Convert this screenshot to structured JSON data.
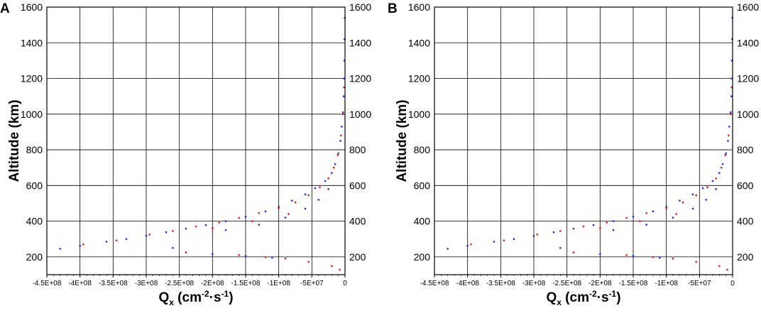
{
  "chart_data": [
    {
      "panel_label": "A",
      "type": "scatter",
      "xlabel": "Q",
      "xlabel_sub": "x",
      "xlabel_units": " (cm",
      "xlabel_exp1": "-2",
      "xlabel_mid": "·s",
      "xlabel_exp2": "-1",
      "xlabel_close": ")",
      "ylabel": "Altitude (km)",
      "xlim": [
        -450000000,
        0
      ],
      "ylim": [
        100,
        1600
      ],
      "xticks": [
        -450000000,
        -400000000,
        -350000000,
        -300000000,
        -250000000,
        -200000000,
        -150000000,
        -100000000,
        -50000000,
        0
      ],
      "xtick_labels": [
        "-4.5E+08",
        "-4E+08",
        "-3.5E+08",
        "-3E+08",
        "-2.5E+08",
        "-2E+08",
        "-1.5E+08",
        "-1E+08",
        "-5E+07",
        "0"
      ],
      "yticks": [
        200,
        400,
        600,
        800,
        1000,
        1200,
        1400,
        1600
      ],
      "ytick_labels": [
        "200",
        "400",
        "600",
        "800",
        "1000",
        "1200",
        "1400",
        "1600"
      ],
      "grid": true,
      "colors": {
        "series_a": "#2b2bd6",
        "series_b": "#d62020"
      },
      "series": [
        {
          "color": "#2b2bd6",
          "points": [
            [
              -430000000,
              245
            ],
            [
              -400000000,
              262
            ],
            [
              -360000000,
              285
            ],
            [
              -330000000,
              300
            ],
            [
              -300000000,
              318
            ],
            [
              -270000000,
              338
            ],
            [
              -240000000,
              358
            ],
            [
              -210000000,
              378
            ],
            [
              -180000000,
              400
            ],
            [
              -150000000,
              425
            ],
            [
              -120000000,
              455
            ],
            [
              -100000000,
              480
            ],
            [
              -80000000,
              515
            ],
            [
              -60000000,
              550
            ],
            [
              -45000000,
              585
            ],
            [
              -30000000,
              625
            ],
            [
              -20000000,
              670
            ],
            [
              -15000000,
              720
            ],
            [
              -10000000,
              780
            ],
            [
              -7000000,
              850
            ],
            [
              -5000000,
              930
            ],
            [
              -3000000,
              1010
            ],
            [
              -2000000,
              1100
            ],
            [
              -1500000,
              1200
            ],
            [
              -1000000,
              1300
            ],
            [
              -700000,
              1420
            ],
            [
              -400000,
              1540
            ],
            [
              -260000000,
              250
            ],
            [
              -200000000,
              215
            ],
            [
              -150000000,
              205
            ],
            [
              -110000000,
              195
            ],
            [
              -180000000,
              350
            ],
            [
              -130000000,
              380
            ],
            [
              -90000000,
              420
            ],
            [
              -60000000,
              470
            ],
            [
              -40000000,
              520
            ],
            [
              -25000000,
              580
            ]
          ]
        },
        {
          "color": "#d62020",
          "points": [
            [
              -395000000,
              270
            ],
            [
              -345000000,
              292
            ],
            [
              -295000000,
              325
            ],
            [
              -260000000,
              345
            ],
            [
              -225000000,
              370
            ],
            [
              -190000000,
              392
            ],
            [
              -160000000,
              418
            ],
            [
              -130000000,
              445
            ],
            [
              -100000000,
              472
            ],
            [
              -75000000,
              505
            ],
            [
              -55000000,
              545
            ],
            [
              -38000000,
              590
            ],
            [
              -25000000,
              640
            ],
            [
              -17000000,
              700
            ],
            [
              -11000000,
              770
            ],
            [
              -6000000,
              880
            ],
            [
              -3000000,
              1000
            ],
            [
              -1500000,
              1150
            ],
            [
              -90000000,
              190
            ],
            [
              -55000000,
              172
            ],
            [
              -20000000,
              148
            ],
            [
              -8000000,
              128
            ],
            [
              -240000000,
              225
            ],
            [
              -160000000,
              210
            ],
            [
              -120000000,
              198
            ],
            [
              -200000000,
              360
            ],
            [
              -140000000,
              400
            ],
            [
              -85000000,
              440
            ]
          ]
        }
      ]
    },
    {
      "panel_label": "B",
      "type": "scatter",
      "xlabel": "Q",
      "xlabel_sub": "x",
      "xlabel_units": " (cm",
      "xlabel_exp1": "-2",
      "xlabel_mid": "·s",
      "xlabel_exp2": "-1",
      "xlabel_close": ")",
      "ylabel": "Altitude (km)",
      "xlim": [
        -450000000,
        0
      ],
      "ylim": [
        100,
        1600
      ],
      "xticks": [
        -450000000,
        -400000000,
        -350000000,
        -300000000,
        -250000000,
        -200000000,
        -150000000,
        -100000000,
        -50000000,
        0
      ],
      "xtick_labels": [
        "-4.5E+08",
        "-4E+08",
        "-3.5E+08",
        "-3E+08",
        "-2.5E+08",
        "-2E+08",
        "-1.5E+08",
        "-1E+08",
        "-5E+07",
        "0"
      ],
      "yticks": [
        200,
        400,
        600,
        800,
        1000,
        1200,
        1400,
        1600
      ],
      "ytick_labels": [
        "200",
        "400",
        "600",
        "800",
        "1000",
        "1200",
        "1400",
        "1600"
      ],
      "grid": true,
      "colors": {
        "series_a": "#2b2bd6",
        "series_b": "#d62020"
      },
      "series": [
        {
          "color": "#2b2bd6",
          "points": [
            [
              -430000000,
              245
            ],
            [
              -400000000,
              262
            ],
            [
              -360000000,
              285
            ],
            [
              -330000000,
              300
            ],
            [
              -300000000,
              318
            ],
            [
              -270000000,
              338
            ],
            [
              -240000000,
              358
            ],
            [
              -210000000,
              378
            ],
            [
              -180000000,
              400
            ],
            [
              -150000000,
              425
            ],
            [
              -120000000,
              455
            ],
            [
              -100000000,
              480
            ],
            [
              -80000000,
              515
            ],
            [
              -60000000,
              550
            ],
            [
              -45000000,
              585
            ],
            [
              -30000000,
              625
            ],
            [
              -20000000,
              670
            ],
            [
              -15000000,
              720
            ],
            [
              -10000000,
              780
            ],
            [
              -7000000,
              850
            ],
            [
              -5000000,
              930
            ],
            [
              -3000000,
              1010
            ],
            [
              -2000000,
              1100
            ],
            [
              -1500000,
              1200
            ],
            [
              -1000000,
              1300
            ],
            [
              -700000,
              1420
            ],
            [
              -400000,
              1540
            ],
            [
              -260000000,
              250
            ],
            [
              -200000000,
              215
            ],
            [
              -150000000,
              205
            ],
            [
              -110000000,
              195
            ],
            [
              -180000000,
              350
            ],
            [
              -130000000,
              380
            ],
            [
              -90000000,
              420
            ],
            [
              -60000000,
              470
            ],
            [
              -40000000,
              520
            ],
            [
              -25000000,
              580
            ]
          ]
        },
        {
          "color": "#d62020",
          "points": [
            [
              -395000000,
              270
            ],
            [
              -345000000,
              292
            ],
            [
              -295000000,
              325
            ],
            [
              -260000000,
              345
            ],
            [
              -225000000,
              370
            ],
            [
              -190000000,
              392
            ],
            [
              -160000000,
              418
            ],
            [
              -130000000,
              445
            ],
            [
              -100000000,
              472
            ],
            [
              -75000000,
              505
            ],
            [
              -55000000,
              545
            ],
            [
              -38000000,
              590
            ],
            [
              -25000000,
              640
            ],
            [
              -17000000,
              700
            ],
            [
              -11000000,
              770
            ],
            [
              -6000000,
              880
            ],
            [
              -3000000,
              1000
            ],
            [
              -1500000,
              1150
            ],
            [
              -90000000,
              190
            ],
            [
              -55000000,
              172
            ],
            [
              -20000000,
              148
            ],
            [
              -8000000,
              128
            ],
            [
              -240000000,
              225
            ],
            [
              -160000000,
              210
            ],
            [
              -120000000,
              198
            ],
            [
              -200000000,
              360
            ],
            [
              -140000000,
              400
            ],
            [
              -85000000,
              440
            ]
          ]
        }
      ]
    }
  ]
}
